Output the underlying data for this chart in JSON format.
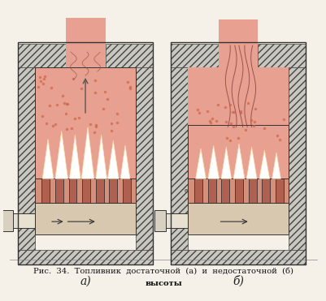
{
  "fig_width": 4.02,
  "fig_height": 3.71,
  "dpi": 100,
  "bg_color": "#f5f0e8",
  "hatch_color": "#555555",
  "wall_color": "#cccccc",
  "firebox_fill": "#e8a090",
  "flame_color": "#ffffff",
  "grate_color": "#c07060",
  "ash_color": "#e0d0c0",
  "caption_line1": "Рис.  34.  Топливник  достаточной  (а)  и  недостаточной  (б)",
  "caption_line2": "высоты",
  "label_a": "а)",
  "label_b": "б)",
  "smoke_color": "#d4b0a0",
  "arrow_color": "#333333"
}
